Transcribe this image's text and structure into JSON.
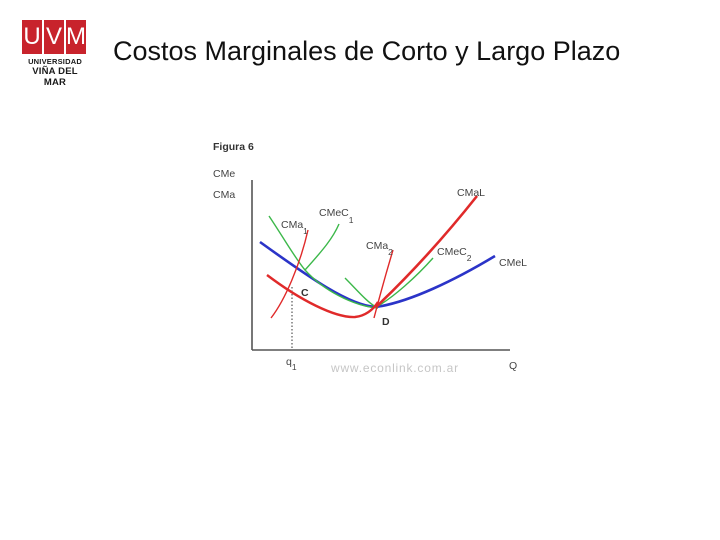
{
  "logo": {
    "letters": [
      "U",
      "V",
      "M"
    ],
    "line1": "UNIVERSIDAD",
    "line2": "VIÑA DEL MAR"
  },
  "slide": {
    "title": "Costos Marginales de Corto y Largo Plazo"
  },
  "figure": {
    "caption": "Figura 6",
    "y_axis_label_1": "CMe",
    "y_axis_label_2": "CMa",
    "x_axis_label": "Q",
    "x_tick_base": "q",
    "x_tick_sub": "1",
    "watermark": "www.econlink.com.ar",
    "curves": {
      "cma1": {
        "base": "CMa",
        "sub": "1",
        "color": "#e02a2a"
      },
      "cmec1": {
        "base": "CMeC",
        "sub": "1",
        "color": "#3cb84a"
      },
      "cma2": {
        "base": "CMa",
        "sub": "2",
        "color": "#e02a2a"
      },
      "cmec2": {
        "base": "CMeC",
        "sub": "2",
        "color": "#3cb84a"
      },
      "cmal": {
        "base": "CMaL",
        "color": "#e02a2a"
      },
      "cmel": {
        "base": "CMeL",
        "color": "#2b34c8"
      }
    },
    "points": {
      "c": "C",
      "d": "D"
    }
  }
}
